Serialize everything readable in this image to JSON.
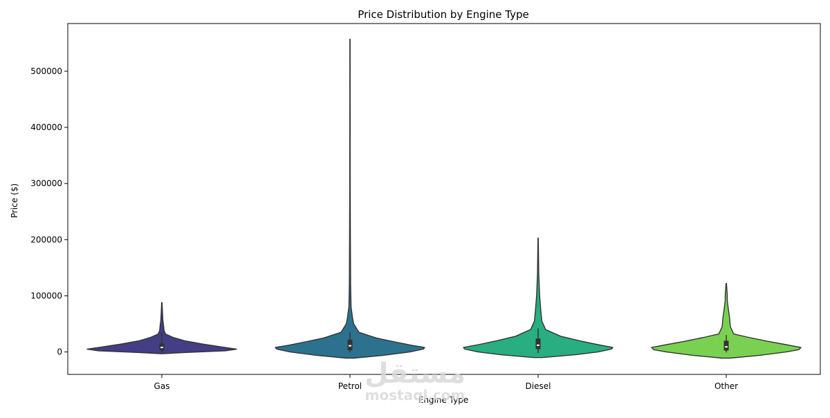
{
  "chart_data": {
    "type": "violin",
    "title": "Price Distribution by Engine Type",
    "xlabel": "Engine Type",
    "ylabel": "Price ($)",
    "ylim": [
      -40000,
      585000
    ],
    "yticks": [
      0,
      100000,
      200000,
      300000,
      400000,
      500000
    ],
    "ytick_labels": [
      "0",
      "100000",
      "200000",
      "300000",
      "400000",
      "500000"
    ],
    "categories": [
      "Gas",
      "Petrol",
      "Diesel",
      "Other"
    ],
    "series": [
      {
        "category": "Gas",
        "color": "#433e85",
        "min": -3000,
        "max": 88000,
        "box": {
          "q1": 2500,
          "median": 8000,
          "q3": 15000,
          "whisker_low": -1000,
          "whisker_high": 35000
        },
        "density": [
          [
            -3000,
            0.02
          ],
          [
            -1000,
            0.3
          ],
          [
            2000,
            0.85
          ],
          [
            5000,
            1.0
          ],
          [
            9000,
            0.8
          ],
          [
            14000,
            0.55
          ],
          [
            20000,
            0.3
          ],
          [
            26000,
            0.15
          ],
          [
            32000,
            0.05
          ],
          [
            38000,
            0.03
          ],
          [
            45000,
            0.025
          ],
          [
            55000,
            0.015
          ],
          [
            70000,
            0.008
          ],
          [
            88000,
            0.003
          ]
        ]
      },
      {
        "category": "Petrol",
        "color": "#2c728e",
        "min": -11000,
        "max": 557000,
        "box": {
          "q1": 3000,
          "median": 11000,
          "q3": 22000,
          "whisker_low": -1000,
          "whisker_high": 35000
        },
        "density": [
          [
            -11000,
            0.05
          ],
          [
            -6000,
            0.45
          ],
          [
            0,
            0.8
          ],
          [
            5000,
            0.98
          ],
          [
            8000,
            1.0
          ],
          [
            12000,
            0.82
          ],
          [
            18000,
            0.6
          ],
          [
            25000,
            0.35
          ],
          [
            35000,
            0.12
          ],
          [
            50000,
            0.05
          ],
          [
            60000,
            0.035
          ],
          [
            80000,
            0.015
          ],
          [
            120000,
            0.008
          ],
          [
            200000,
            0.006
          ],
          [
            300000,
            0.003
          ],
          [
            557000,
            0.002
          ]
        ]
      },
      {
        "category": "Diesel",
        "color": "#28ae80",
        "min": -10000,
        "max": 203000,
        "box": {
          "q1": 5000,
          "median": 12000,
          "q3": 24000,
          "whisker_low": -2000,
          "whisker_high": 42000
        },
        "density": [
          [
            -10000,
            0.05
          ],
          [
            -5000,
            0.5
          ],
          [
            0,
            0.8
          ],
          [
            5000,
            0.98
          ],
          [
            8000,
            1.0
          ],
          [
            13000,
            0.8
          ],
          [
            20000,
            0.55
          ],
          [
            28000,
            0.3
          ],
          [
            40000,
            0.1
          ],
          [
            55000,
            0.05
          ],
          [
            75000,
            0.035
          ],
          [
            100000,
            0.02
          ],
          [
            140000,
            0.008
          ],
          [
            203000,
            0.002
          ]
        ]
      },
      {
        "category": "Other",
        "color": "#7ad151",
        "min": -11000,
        "max": 122000,
        "box": {
          "q1": 2500,
          "median": 9000,
          "q3": 20000,
          "whisker_low": -1000,
          "whisker_high": 30000
        },
        "density": [
          [
            -11000,
            0.05
          ],
          [
            -6000,
            0.45
          ],
          [
            0,
            0.8
          ],
          [
            4000,
            0.97
          ],
          [
            8000,
            1.0
          ],
          [
            13000,
            0.8
          ],
          [
            19000,
            0.55
          ],
          [
            26000,
            0.3
          ],
          [
            32000,
            0.1
          ],
          [
            45000,
            0.055
          ],
          [
            60000,
            0.045
          ],
          [
            75000,
            0.03
          ],
          [
            90000,
            0.015
          ],
          [
            105000,
            0.012
          ],
          [
            122000,
            0.003
          ]
        ]
      }
    ],
    "grid": false,
    "legend": "none"
  },
  "watermark": {
    "arabic": "مستقل",
    "latin": "mostaql.com"
  }
}
